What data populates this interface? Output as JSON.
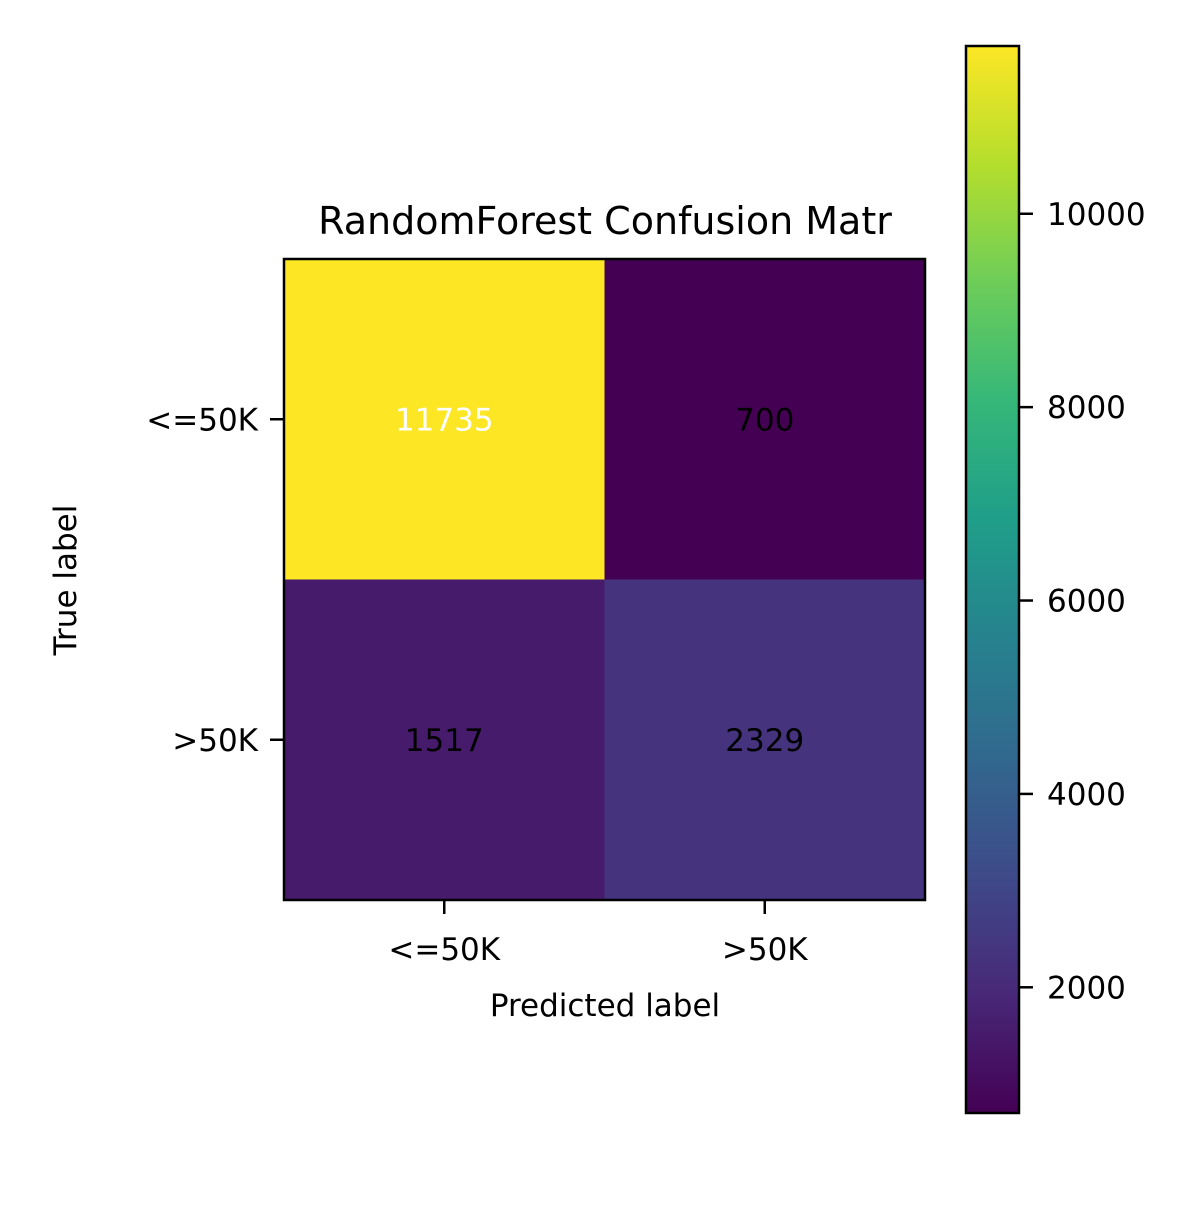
{
  "chart_data": {
    "type": "heatmap",
    "title": "RandomForest Confusion Matr",
    "xlabel": "Predicted label",
    "ylabel": "True label",
    "x_categories": [
      "<=50K",
      ">50K"
    ],
    "y_categories": [
      "<=50K",
      ">50K"
    ],
    "matrix": [
      [
        11735,
        700
      ],
      [
        1517,
        2329
      ]
    ],
    "colormap": "viridis",
    "colorbar": {
      "range": [
        700,
        11735
      ],
      "ticks": [
        2000,
        4000,
        6000,
        8000,
        10000
      ],
      "tick_labels": [
        "2000",
        "4000",
        "6000",
        "8000",
        "10000"
      ]
    },
    "grid": false
  }
}
